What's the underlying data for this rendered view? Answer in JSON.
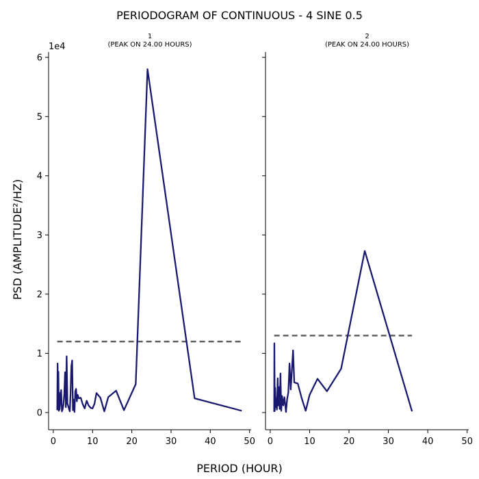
{
  "figure": {
    "suptitle": "PERIODOGRAM OF CONTINUOUS - 4 SINE 0.5",
    "xlabel": "PERIOD (HOUR)",
    "ylabel": "PSD (AMPLITUDE²/HZ)",
    "offset_text": "1e4"
  },
  "chart_data": [
    {
      "type": "line",
      "title_line1": "1",
      "title_line2": "(PEAK ON 24.00 HOURS)",
      "xlim": [
        -1.2,
        50.4
      ],
      "ylim": [
        -2900,
        60900
      ],
      "x_ticks": [
        0,
        10,
        20,
        30,
        40,
        50
      ],
      "y_ticks": [
        0,
        10000,
        20000,
        30000,
        40000,
        50000,
        60000
      ],
      "y_tick_labels": [
        "0",
        "1",
        "2",
        "3",
        "4",
        "5",
        "6"
      ],
      "series": [
        {
          "color": "#191970",
          "x": [
            1.0,
            1.1,
            1.2,
            1.3,
            1.4,
            1.5,
            1.6,
            1.8,
            2.0,
            2.2,
            2.4,
            2.6,
            2.8,
            3.0,
            3.2,
            3.4,
            3.6,
            3.8,
            4.0,
            4.2,
            4.4,
            4.6,
            4.8,
            5.0,
            5.2,
            5.4,
            5.6,
            5.8,
            6.0,
            6.2,
            6.5,
            7.0,
            7.5,
            8.0,
            8.5,
            9.0,
            9.5,
            10.0,
            10.5,
            11.0,
            12.0,
            13.0,
            14.0,
            16.0,
            18.0,
            21.0,
            24.0,
            36.0,
            48.0
          ],
          "y": [
            400,
            8300,
            700,
            6900,
            300,
            3400,
            500,
            2000,
            3800,
            200,
            600,
            1400,
            3200,
            6800,
            900,
            9500,
            1500,
            1100,
            600,
            200,
            3300,
            7800,
            8800,
            400,
            2200,
            100,
            3600,
            4000,
            1900,
            3000,
            2400,
            2500,
            1400,
            700,
            2000,
            1200,
            800,
            700,
            1500,
            3300,
            2500,
            200,
            2600,
            3700,
            400,
            4800,
            58000,
            2400,
            300
          ]
        }
      ],
      "threshold": {
        "value": 12000,
        "x_range": [
          1.0,
          48.0
        ],
        "color": "#5f5f5f",
        "style": "dashed"
      }
    },
    {
      "type": "line",
      "title_line1": "2",
      "title_line2": "(PEAK ON 24.00 HOURS)",
      "xlim": [
        -1.2,
        50.4
      ],
      "ylim": [
        -2900,
        60900
      ],
      "x_ticks": [
        0,
        10,
        20,
        30,
        40,
        50
      ],
      "y_ticks": [
        0,
        10000,
        20000,
        30000,
        40000,
        50000,
        60000
      ],
      "series": [
        {
          "color": "#191970",
          "x": [
            1.0,
            1.05,
            1.15,
            1.25,
            1.4,
            1.5,
            1.7,
            1.9,
            2.0,
            2.2,
            2.4,
            2.6,
            2.8,
            3.0,
            3.3,
            3.6,
            4.0,
            4.3,
            4.6,
            4.9,
            5.2,
            5.5,
            5.8,
            6.1,
            6.5,
            7.0,
            8.0,
            9.0,
            10.0,
            12.0,
            14.4,
            18.0,
            24.0,
            36.0
          ],
          "y": [
            100,
            11700,
            300,
            4200,
            900,
            2400,
            500,
            5800,
            1200,
            4300,
            600,
            6600,
            300,
            2800,
            1200,
            2600,
            100,
            2300,
            3400,
            8300,
            3900,
            7200,
            10500,
            5100,
            5000,
            4900,
            2400,
            300,
            3000,
            5700,
            3600,
            7400,
            27300,
            200
          ]
        }
      ],
      "threshold": {
        "value": 13000,
        "x_range": [
          1.0,
          36.0
        ],
        "color": "#5f5f5f",
        "style": "dashed"
      }
    }
  ]
}
